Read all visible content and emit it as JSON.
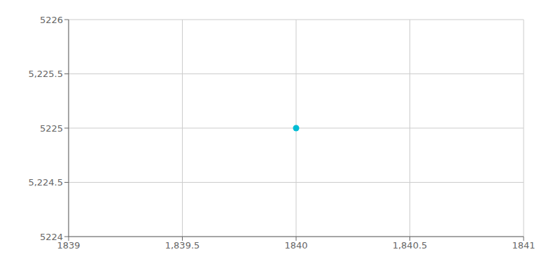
{
  "chart_data": {
    "type": "scatter",
    "x": [
      1840
    ],
    "values": [
      5225
    ],
    "color": "#00BCD4",
    "xlim": [
      1839,
      1841
    ],
    "ylim": [
      5224,
      5226
    ],
    "xticks": [
      1839,
      {
        "value": 1839.5,
        "label": "1,839.5"
      },
      1840,
      {
        "value": 1840.5,
        "label": "1,840.5"
      },
      1841
    ],
    "yticks": [
      5224,
      {
        "value": 5224.5,
        "label": "5,224.5"
      },
      5225,
      {
        "value": 5225.5,
        "label": "5,225.5"
      },
      5226
    ],
    "grid": true
  }
}
